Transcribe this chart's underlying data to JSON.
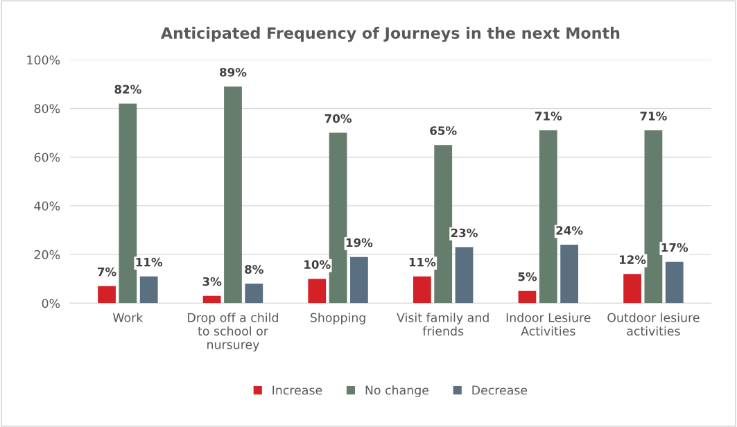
{
  "chart_data": {
    "type": "bar",
    "title": "Anticipated Frequency of Journeys in the next Month",
    "categories": [
      "Work",
      "Drop off a child to school or nursurey",
      "Shopping",
      "Visit family and friends",
      "Indoor Lesiure Activities",
      "Outdoor lesiure activities"
    ],
    "series": [
      {
        "name": "Increase",
        "color": "#d42027",
        "values": [
          7,
          3,
          10,
          11,
          5,
          12
        ],
        "value_labels": [
          "7%",
          "3%",
          "10%",
          "11%",
          "5%",
          "12%"
        ]
      },
      {
        "name": "No change",
        "color": "#647d6c",
        "values": [
          82,
          89,
          70,
          65,
          71,
          71
        ],
        "value_labels": [
          "82%",
          "89%",
          "70%",
          "65%",
          "71%",
          "71%"
        ]
      },
      {
        "name": "Decrease",
        "color": "#5a7080",
        "values": [
          11,
          8,
          19,
          23,
          24,
          17
        ],
        "value_labels": [
          "11%",
          "8%",
          "19%",
          "23%",
          "24%",
          "17%"
        ]
      }
    ],
    "ylim": [
      0,
      100
    ],
    "yticks": [
      {
        "value": 0,
        "label": "0%"
      },
      {
        "value": 20,
        "label": "20%"
      },
      {
        "value": 40,
        "label": "40%"
      },
      {
        "value": 60,
        "label": "60%"
      },
      {
        "value": 80,
        "label": "80%"
      },
      {
        "value": 100,
        "label": "100%"
      }
    ],
    "grid": "y",
    "legend": "bottom"
  }
}
